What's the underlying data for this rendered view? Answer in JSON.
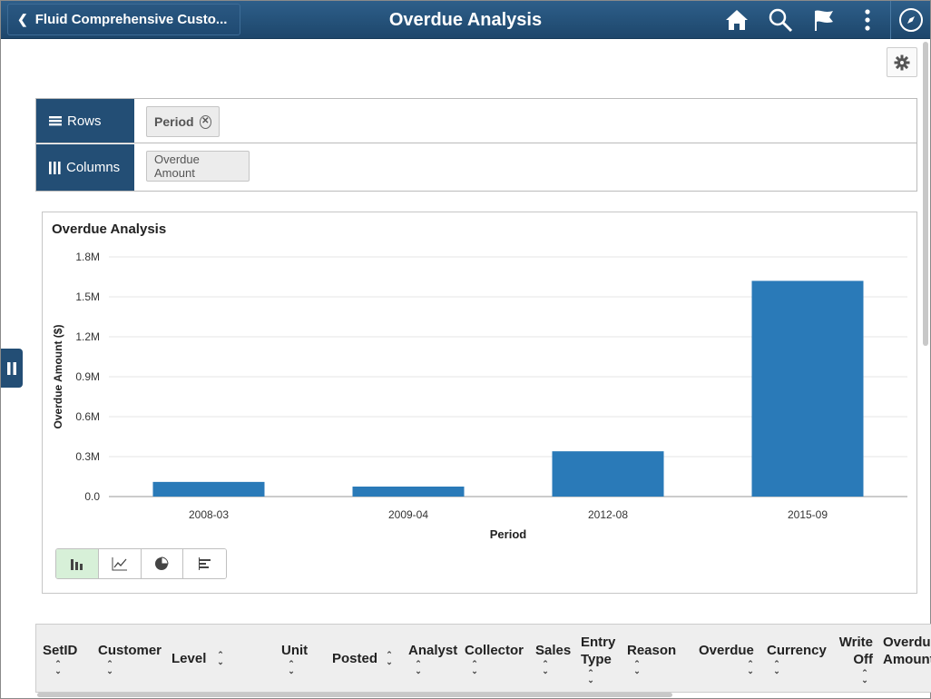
{
  "header": {
    "back_label": "Fluid Comprehensive Custo...",
    "title": "Overdue Analysis",
    "icons": [
      "home-icon",
      "search-icon",
      "flag-icon",
      "more-vertical-icon",
      "navbar-compass-icon"
    ]
  },
  "pivot": {
    "rows_label": "Rows",
    "columns_label": "Columns",
    "rows_chip": "Period",
    "columns_chip": "Overdue Amount"
  },
  "chart_data": {
    "type": "bar",
    "title": "Overdue Analysis",
    "xlabel": "Period",
    "ylabel": "Overdue Amount ($)",
    "categories": [
      "2008-03",
      "2009-04",
      "2012-08",
      "2015-09"
    ],
    "values": [
      110000,
      75000,
      340000,
      1620000
    ],
    "ylim": [
      0,
      1800000
    ],
    "yticks": [
      "0.0",
      "0.3M",
      "0.6M",
      "0.9M",
      "1.2M",
      "1.5M",
      "1.8M"
    ],
    "color": "#2a7ab8",
    "grid": true
  },
  "chart_types": [
    "bar-chart-icon",
    "line-chart-icon",
    "pie-chart-icon",
    "horizontal-bar-icon"
  ],
  "grid": {
    "columns": [
      {
        "label": "SetID"
      },
      {
        "label": "Customer"
      },
      {
        "label": "Level"
      },
      {
        "label": "Unit"
      },
      {
        "label": "Posted"
      },
      {
        "label": "Analyst"
      },
      {
        "label": "Collector"
      },
      {
        "label": "Sales"
      },
      {
        "label": "Entry\nType"
      },
      {
        "label": "Reason"
      },
      {
        "label": "Overdue"
      },
      {
        "label": "Currency"
      },
      {
        "label": "Write\nOff"
      },
      {
        "label": "Overdue\nAmount"
      }
    ]
  }
}
